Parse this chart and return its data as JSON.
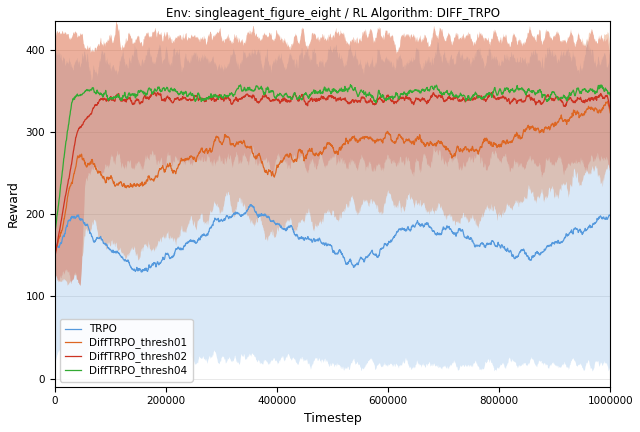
{
  "title": "Env: singleagent_figure_eight / RL Algorithm: DIFF_TRPO",
  "xlabel": "Timestep",
  "ylabel": "Reward",
  "xlim": [
    0,
    1000000
  ],
  "ylim": [
    -10,
    435
  ],
  "yticks": [
    0,
    100,
    200,
    300,
    400
  ],
  "xticks": [
    0,
    200000,
    400000,
    600000,
    800000,
    1000000
  ],
  "legend_labels": [
    "TRPO",
    "DiffTRPO_thresh01",
    "DiffTRPO_thresh02",
    "DiffTRPO_thresh04"
  ],
  "colors": {
    "trpo": "#5599dd",
    "thresh01": "#dd6622",
    "thresh02": "#cc3322",
    "thresh04": "#33aa33"
  },
  "n_points": 2000,
  "seed": 7
}
